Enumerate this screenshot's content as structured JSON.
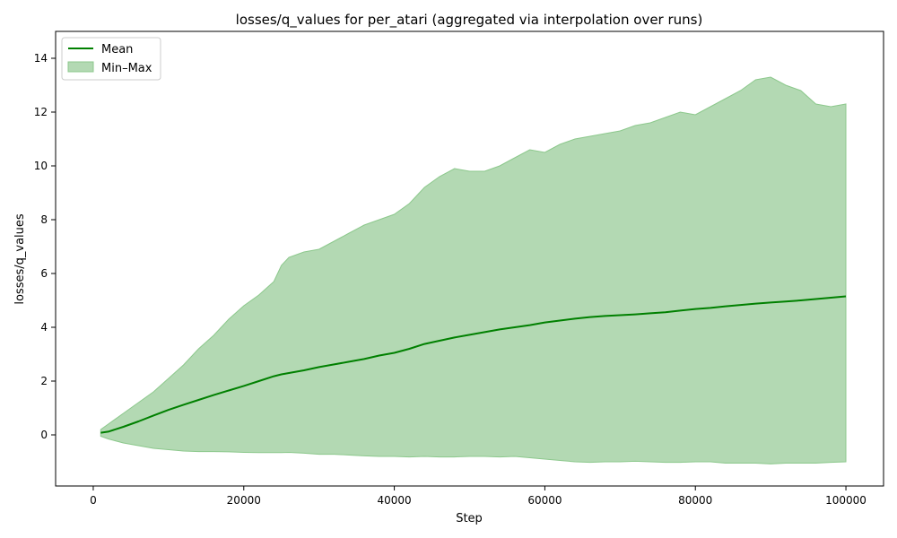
{
  "chart_data": {
    "type": "line",
    "title": "losses/q_values for per_atari (aggregated via interpolation over runs)",
    "xlabel": "Step",
    "ylabel": "losses/q_values",
    "xlim": [
      -5000,
      105000
    ],
    "ylim": [
      -1.9,
      15.0
    ],
    "xticks": [
      0,
      20000,
      40000,
      60000,
      80000,
      100000
    ],
    "yticks": [
      0,
      2,
      4,
      6,
      8,
      10,
      12,
      14
    ],
    "grid": false,
    "legend": {
      "placement": "top-left",
      "entries": [
        "Mean",
        "Min–Max"
      ]
    },
    "colors": {
      "mean": "#008000",
      "band_fill": "#b3d9b3",
      "band_edge": "#8cc88c"
    },
    "x": [
      1000,
      2000,
      4000,
      6000,
      8000,
      10000,
      12000,
      14000,
      16000,
      18000,
      20000,
      22000,
      24000,
      25000,
      26000,
      28000,
      30000,
      32000,
      34000,
      36000,
      38000,
      40000,
      42000,
      44000,
      46000,
      48000,
      50000,
      52000,
      54000,
      56000,
      58000,
      60000,
      62000,
      64000,
      66000,
      68000,
      70000,
      72000,
      74000,
      76000,
      78000,
      80000,
      82000,
      84000,
      86000,
      88000,
      90000,
      92000,
      94000,
      96000,
      98000,
      100000
    ],
    "series": [
      {
        "name": "Mean",
        "values": [
          0.08,
          0.12,
          0.3,
          0.5,
          0.72,
          0.93,
          1.12,
          1.3,
          1.48,
          1.65,
          1.82,
          2.0,
          2.18,
          2.25,
          2.3,
          2.4,
          2.52,
          2.62,
          2.72,
          2.82,
          2.95,
          3.05,
          3.2,
          3.38,
          3.5,
          3.62,
          3.72,
          3.82,
          3.92,
          4.0,
          4.08,
          4.18,
          4.25,
          4.32,
          4.38,
          4.42,
          4.45,
          4.48,
          4.52,
          4.56,
          4.62,
          4.68,
          4.72,
          4.78,
          4.83,
          4.88,
          4.92,
          4.96,
          5.0,
          5.05,
          5.1,
          5.15
        ]
      },
      {
        "name": "Min–Max",
        "min": [
          -0.05,
          -0.15,
          -0.3,
          -0.4,
          -0.5,
          -0.55,
          -0.6,
          -0.62,
          -0.62,
          -0.63,
          -0.65,
          -0.66,
          -0.66,
          -0.66,
          -0.65,
          -0.68,
          -0.72,
          -0.72,
          -0.75,
          -0.78,
          -0.8,
          -0.8,
          -0.82,
          -0.8,
          -0.82,
          -0.82,
          -0.8,
          -0.8,
          -0.82,
          -0.8,
          -0.85,
          -0.9,
          -0.95,
          -1.0,
          -1.02,
          -1.0,
          -1.0,
          -0.98,
          -1.0,
          -1.02,
          -1.02,
          -1.0,
          -1.0,
          -1.05,
          -1.05,
          -1.05,
          -1.08,
          -1.05,
          -1.05,
          -1.05,
          -1.02,
          -1.0
        ],
        "max": [
          0.2,
          0.4,
          0.8,
          1.2,
          1.6,
          2.1,
          2.6,
          3.2,
          3.7,
          4.3,
          4.8,
          5.2,
          5.7,
          6.3,
          6.6,
          6.8,
          6.9,
          7.2,
          7.5,
          7.8,
          8.0,
          8.2,
          8.6,
          9.2,
          9.6,
          9.9,
          9.8,
          9.8,
          10.0,
          10.3,
          10.6,
          10.5,
          10.8,
          11.0,
          11.1,
          11.2,
          11.3,
          11.5,
          11.6,
          11.8,
          12.0,
          11.9,
          12.2,
          12.5,
          12.8,
          13.2,
          13.3,
          13.0,
          12.8,
          12.3,
          12.2,
          12.3
        ]
      }
    ]
  }
}
